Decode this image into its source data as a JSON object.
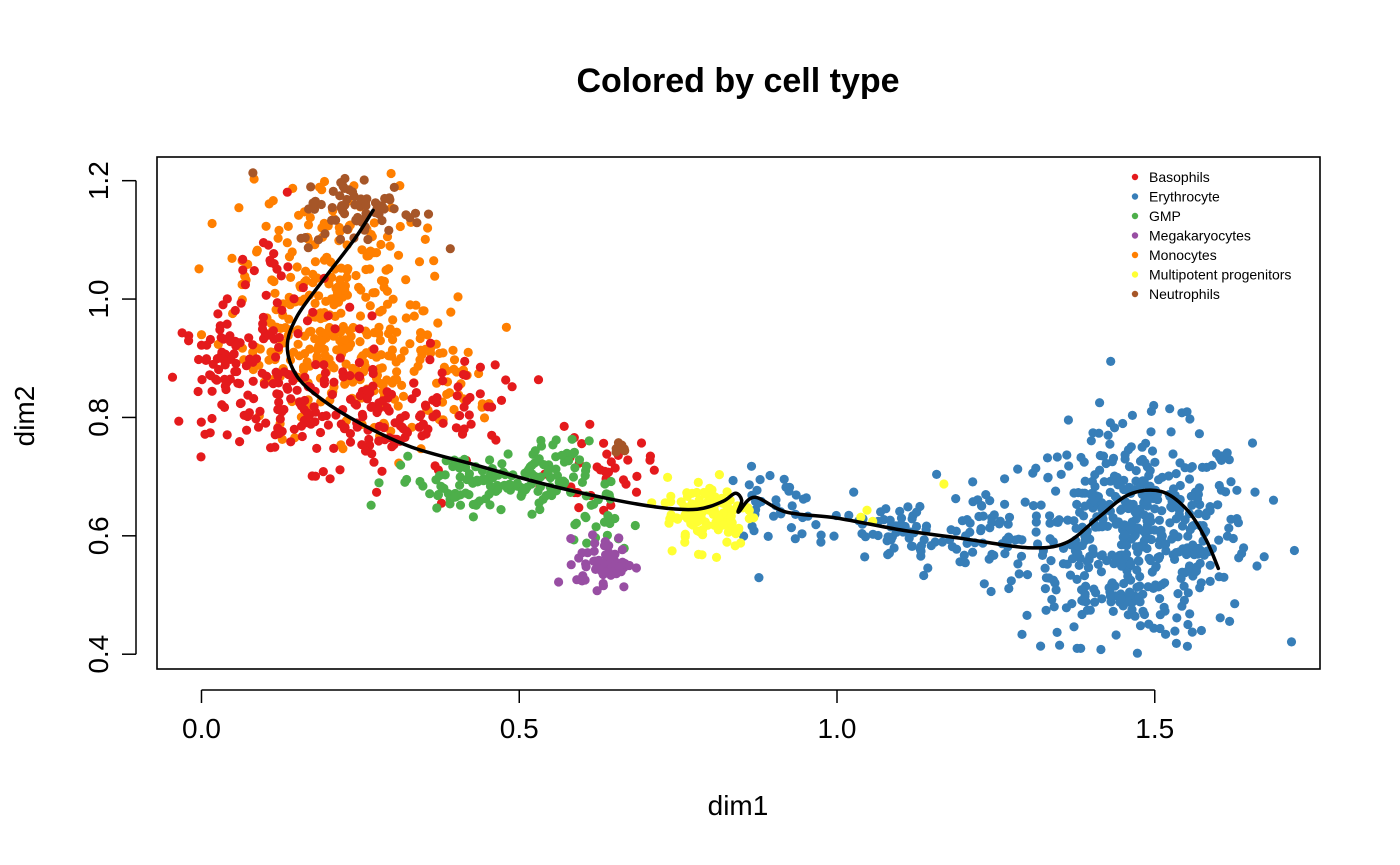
{
  "chart_data": {
    "type": "scatter",
    "title": "Colored by cell type",
    "xlabel": "dim1",
    "ylabel": "dim2",
    "xlim": [
      -0.07,
      1.76
    ],
    "ylim": [
      0.375,
      1.24
    ],
    "x_ticks": [
      "0.0",
      "0.5",
      "1.0",
      "1.5"
    ],
    "x_tick_values": [
      0.0,
      0.5,
      1.0,
      1.5
    ],
    "y_ticks": [
      "0.4",
      "0.6",
      "0.8",
      "1.0",
      "1.2"
    ],
    "y_tick_values": [
      0.4,
      0.6,
      0.8,
      1.0,
      1.2
    ],
    "legend_position": "top-right",
    "grid": false,
    "series": [
      {
        "name": "Basophils",
        "color": "#E41A1C",
        "clusters": [
          {
            "cx": 0.05,
            "cy": 0.88,
            "sx": 0.04,
            "sy": 0.05,
            "n": 90
          },
          {
            "cx": 0.18,
            "cy": 0.82,
            "sx": 0.06,
            "sy": 0.05,
            "n": 90
          },
          {
            "cx": 0.3,
            "cy": 0.78,
            "sx": 0.07,
            "sy": 0.05,
            "n": 70
          },
          {
            "cx": 0.12,
            "cy": 1.0,
            "sx": 0.05,
            "sy": 0.07,
            "n": 35
          },
          {
            "cx": 0.63,
            "cy": 0.71,
            "sx": 0.04,
            "sy": 0.03,
            "n": 35
          },
          {
            "cx": 0.42,
            "cy": 0.83,
            "sx": 0.05,
            "sy": 0.04,
            "n": 30
          }
        ]
      },
      {
        "name": "Erythrocyte",
        "color": "#377EB8",
        "clusters": [
          {
            "cx": 1.47,
            "cy": 0.6,
            "sx": 0.09,
            "sy": 0.09,
            "n": 520
          },
          {
            "cx": 0.9,
            "cy": 0.65,
            "sx": 0.04,
            "sy": 0.03,
            "n": 40
          },
          {
            "cx": 1.1,
            "cy": 0.6,
            "sx": 0.06,
            "sy": 0.03,
            "n": 70
          },
          {
            "cx": 1.25,
            "cy": 0.62,
            "sx": 0.04,
            "sy": 0.04,
            "n": 40
          }
        ]
      },
      {
        "name": "GMP",
        "color": "#4DAF4A",
        "clusters": [
          {
            "cx": 0.42,
            "cy": 0.69,
            "sx": 0.06,
            "sy": 0.025,
            "n": 80
          },
          {
            "cx": 0.53,
            "cy": 0.7,
            "sx": 0.04,
            "sy": 0.03,
            "n": 70
          },
          {
            "cx": 0.62,
            "cy": 0.62,
            "sx": 0.03,
            "sy": 0.03,
            "n": 25
          }
        ]
      },
      {
        "name": "Megakaryocytes",
        "color": "#984EA3",
        "clusters": [
          {
            "cx": 0.635,
            "cy": 0.555,
            "sx": 0.022,
            "sy": 0.022,
            "n": 60
          }
        ]
      },
      {
        "name": "Monocytes",
        "color": "#FF7F00",
        "clusters": [
          {
            "cx": 0.2,
            "cy": 1.03,
            "sx": 0.07,
            "sy": 0.09,
            "n": 190
          },
          {
            "cx": 0.27,
            "cy": 0.88,
            "sx": 0.08,
            "sy": 0.06,
            "n": 120
          },
          {
            "cx": 0.15,
            "cy": 0.92,
            "sx": 0.05,
            "sy": 0.05,
            "n": 60
          },
          {
            "cx": 0.4,
            "cy": 0.86,
            "sx": 0.04,
            "sy": 0.04,
            "n": 30
          }
        ]
      },
      {
        "name": "Multipotent progenitors",
        "color": "#FFFF33",
        "clusters": [
          {
            "cx": 0.8,
            "cy": 0.64,
            "sx": 0.035,
            "sy": 0.03,
            "n": 110
          },
          {
            "cx": 1.05,
            "cy": 0.63,
            "sx": 0.01,
            "sy": 0.01,
            "n": 3
          },
          {
            "cx": 1.17,
            "cy": 0.68,
            "sx": 0.005,
            "sy": 0.005,
            "n": 1
          }
        ]
      },
      {
        "name": "Neutrophils",
        "color": "#A65628",
        "clusters": [
          {
            "cx": 0.25,
            "cy": 1.15,
            "sx": 0.05,
            "sy": 0.03,
            "n": 70
          },
          {
            "cx": 0.66,
            "cy": 0.75,
            "sx": 0.008,
            "sy": 0.008,
            "n": 6
          }
        ]
      }
    ],
    "trajectory": {
      "color": "#000000",
      "x": [
        0.27,
        0.24,
        0.19,
        0.15,
        0.135,
        0.15,
        0.19,
        0.25,
        0.33,
        0.43,
        0.53,
        0.63,
        0.72,
        0.78,
        0.82,
        0.84,
        0.85,
        0.845,
        0.87,
        0.92,
        1.0,
        1.1,
        1.2,
        1.3,
        1.36,
        1.41,
        1.46,
        1.51,
        1.55,
        1.58,
        1.6
      ],
      "y": [
        1.15,
        1.1,
        1.03,
        0.97,
        0.92,
        0.87,
        0.83,
        0.79,
        0.75,
        0.72,
        0.69,
        0.665,
        0.648,
        0.645,
        0.658,
        0.672,
        0.66,
        0.64,
        0.665,
        0.64,
        0.63,
        0.61,
        0.595,
        0.58,
        0.588,
        0.63,
        0.67,
        0.675,
        0.645,
        0.595,
        0.545
      ]
    }
  }
}
